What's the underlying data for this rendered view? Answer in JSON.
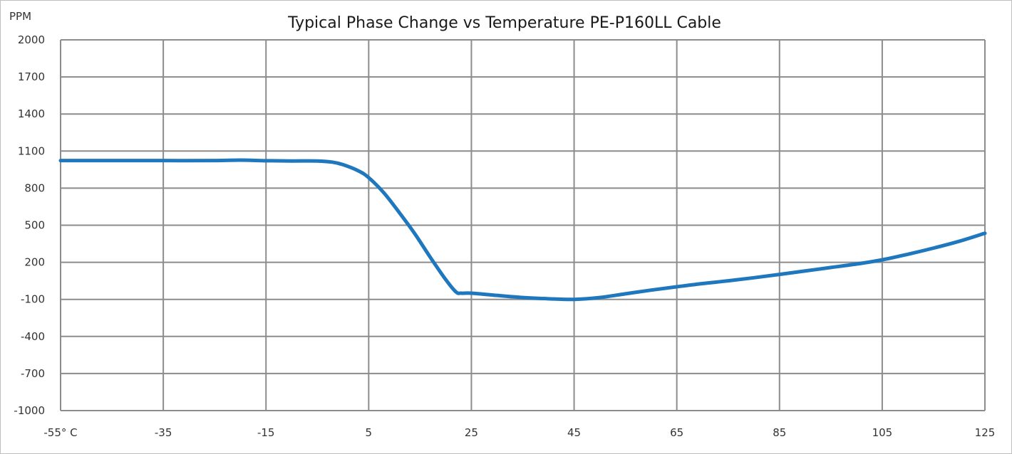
{
  "chart_data": {
    "type": "line",
    "title": "Typical Phase Change vs Temperature PE-P160LL Cable",
    "ylabel": "PPM",
    "xlabel": "",
    "xlim": [
      -55,
      125
    ],
    "ylim": [
      -1000,
      2000
    ],
    "x_ticks": [
      -55,
      -35,
      -15,
      5,
      25,
      45,
      65,
      85,
      105,
      125
    ],
    "x_tick_labels": [
      "-55° C",
      "-35",
      "-15",
      "5",
      "25",
      "45",
      "65",
      "85",
      "105",
      "125"
    ],
    "y_ticks": [
      2000,
      1700,
      1400,
      1100,
      800,
      500,
      200,
      -100,
      -400,
      -700,
      -1000
    ],
    "y_tick_labels": [
      "2000",
      "1700",
      "1400",
      "1100",
      "800",
      "500",
      "200",
      "-100",
      "-400",
      "-700",
      "-1000"
    ],
    "grid": true,
    "line_color": "#1f77bd",
    "series": [
      {
        "x": [
          -55,
          -45,
          -35,
          -25,
          -20,
          -15,
          -10,
          -5,
          -2,
          0,
          3,
          5,
          8,
          11,
          14,
          17,
          20,
          22,
          23,
          25,
          30,
          35,
          40,
          45,
          50,
          55,
          60,
          65,
          70,
          75,
          80,
          85,
          90,
          95,
          100,
          105,
          110,
          115,
          120,
          125
        ],
        "y": [
          1023,
          1023,
          1023,
          1023,
          1027,
          1022,
          1020,
          1020,
          1010,
          990,
          940,
          885,
          760,
          600,
          430,
          240,
          60,
          -40,
          -50,
          -50,
          -68,
          -85,
          -95,
          -100,
          -85,
          -55,
          -25,
          2,
          28,
          50,
          75,
          102,
          130,
          158,
          186,
          220,
          265,
          315,
          370,
          435
        ]
      }
    ]
  }
}
